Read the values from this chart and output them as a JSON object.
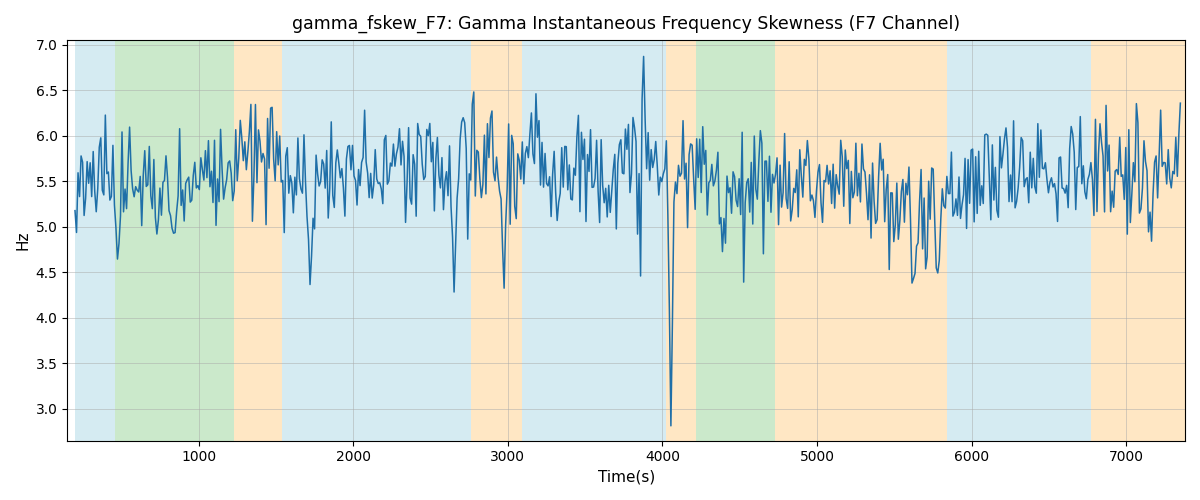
{
  "title": "gamma_fskew_F7: Gamma Instantaneous Frequency Skewness (F7 Channel)",
  "xlabel": "Time(s)",
  "ylabel": "Hz",
  "xlim": [
    150,
    7380
  ],
  "ylim": [
    2.65,
    7.05
  ],
  "yticks": [
    3.0,
    3.5,
    4.0,
    4.5,
    5.0,
    5.5,
    6.0,
    6.5,
    7.0
  ],
  "xticks": [
    1000,
    2000,
    3000,
    4000,
    5000,
    6000,
    7000
  ],
  "line_color": "#1f6fa8",
  "line_width": 1.1,
  "background_color": "#ffffff",
  "grid_color": "#aaaaaa",
  "bands": [
    {
      "xmin": 200,
      "xmax": 460,
      "color": "#add8e6",
      "alpha": 0.5
    },
    {
      "xmin": 460,
      "xmax": 1230,
      "color": "#98d498",
      "alpha": 0.5
    },
    {
      "xmin": 1230,
      "xmax": 1540,
      "color": "#ffd08a",
      "alpha": 0.5
    },
    {
      "xmin": 1540,
      "xmax": 2760,
      "color": "#add8e6",
      "alpha": 0.5
    },
    {
      "xmin": 2760,
      "xmax": 3090,
      "color": "#ffd08a",
      "alpha": 0.5
    },
    {
      "xmin": 3090,
      "xmax": 4020,
      "color": "#add8e6",
      "alpha": 0.5
    },
    {
      "xmin": 4020,
      "xmax": 4220,
      "color": "#ffd08a",
      "alpha": 0.5
    },
    {
      "xmin": 4220,
      "xmax": 4730,
      "color": "#98d498",
      "alpha": 0.5
    },
    {
      "xmin": 4730,
      "xmax": 5840,
      "color": "#ffd08a",
      "alpha": 0.5
    },
    {
      "xmin": 5840,
      "xmax": 6770,
      "color": "#add8e6",
      "alpha": 0.5
    },
    {
      "xmin": 6770,
      "xmax": 7380,
      "color": "#ffd08a",
      "alpha": 0.5
    }
  ],
  "figsize": [
    12.0,
    5.0
  ],
  "dpi": 100
}
